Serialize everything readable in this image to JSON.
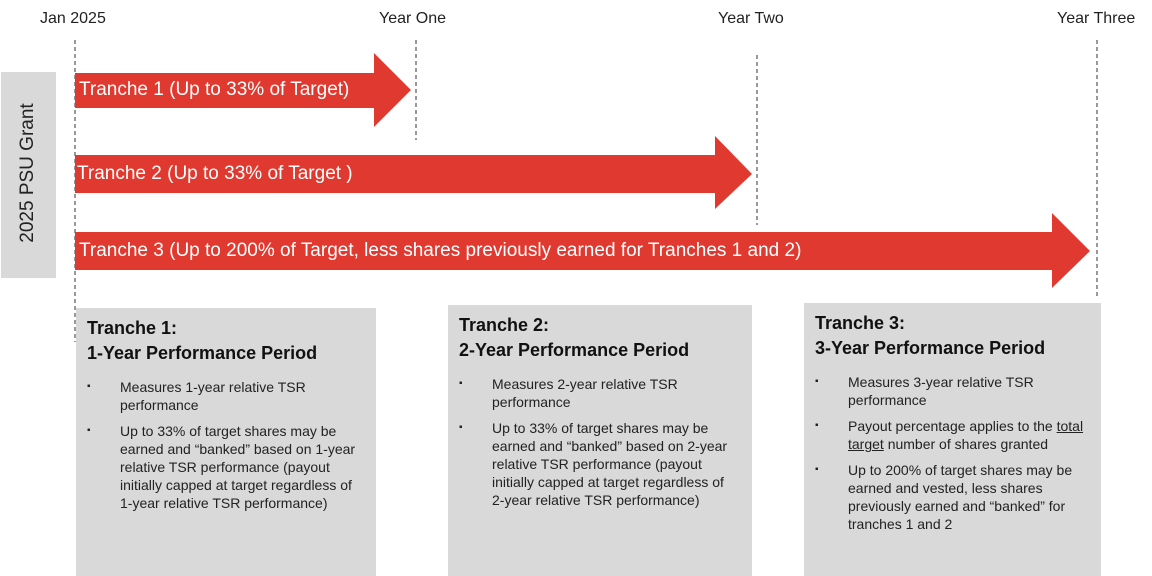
{
  "timeline": {
    "labels": [
      "Jan 2025",
      "Year One",
      "Year Two",
      "Year Three"
    ]
  },
  "grant_label": "2025 PSU Grant",
  "arrows": [
    "Tranche 1 (Up to 33% of Target)",
    "Tranche 2 (Up to 33% of Target )",
    "Tranche 3 (Up to 200% of Target, less shares previously earned for Tranches 1 and 2)"
  ],
  "boxes": [
    {
      "title_line1": "Tranche 1:",
      "title_line2": "1-Year Performance Period",
      "bullets": [
        [
          {
            "text": "Measures 1-year relative TSR performance"
          }
        ],
        [
          {
            "text": "Up to 33% of target shares may be earned and “banked” based on 1-year relative TSR performance (payout initially capped at target regardless of 1-year relative TSR performance)"
          }
        ]
      ]
    },
    {
      "title_line1": "Tranche 2:",
      "title_line2": "2-Year Performance Period",
      "bullets": [
        [
          {
            "text": "Measures 2-year relative TSR performance"
          }
        ],
        [
          {
            "text": "Up to 33% of target shares may be earned and “banked” based on 2-year relative TSR performance (payout initially capped at target regardless of 2-year relative TSR performance)"
          }
        ]
      ]
    },
    {
      "title_line1": "Tranche 3:",
      "title_line2": "3-Year Performance Period",
      "bullets": [
        [
          {
            "text": "Measures 3-year relative TSR performance"
          }
        ],
        [
          {
            "text": "Payout percentage applies to the "
          },
          {
            "text": "total target",
            "underline": true
          },
          {
            "text": " number of shares granted"
          }
        ],
        [
          {
            "text": "Up to 200% of target shares may be earned and vested, less shares previously earned and “banked” for tranches 1 and 2"
          }
        ]
      ]
    }
  ]
}
